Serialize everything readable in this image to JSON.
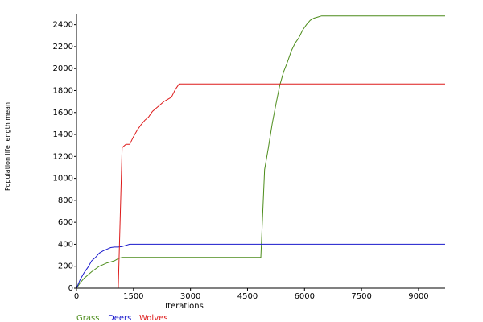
{
  "chart_data": {
    "type": "line",
    "xlabel": "Iterations",
    "ylabel": "Population life length mean",
    "xlim": [
      0,
      9700
    ],
    "ylim": [
      0,
      2500
    ],
    "xticks": [
      0,
      1500,
      3000,
      4500,
      6000,
      7500,
      9000
    ],
    "yticks": [
      0,
      200,
      400,
      600,
      800,
      1000,
      1200,
      1400,
      1600,
      1800,
      2000,
      2200,
      2400
    ],
    "grid": false,
    "legend": "bottom-left",
    "series": [
      {
        "name": "Grass",
        "color": "#4c8c1a",
        "x": [
          0,
          100,
          200,
          300,
          400,
          500,
          600,
          700,
          800,
          900,
          1000,
          1100,
          1200,
          4800,
          4850,
          4950,
          5050,
          5150,
          5250,
          5350,
          5450,
          5550,
          5650,
          5750,
          5850,
          5950,
          6050,
          6150,
          6250,
          6350,
          6450,
          6600,
          7000,
          8000,
          9000,
          9700
        ],
        "y": [
          0,
          50,
          90,
          120,
          150,
          175,
          200,
          215,
          230,
          240,
          250,
          270,
          280,
          280,
          280,
          1080,
          1280,
          1500,
          1680,
          1850,
          1970,
          2060,
          2160,
          2230,
          2280,
          2350,
          2400,
          2440,
          2460,
          2470,
          2480,
          2480,
          2480,
          2480,
          2480,
          2480
        ]
      },
      {
        "name": "Deers",
        "color": "#1a1acc",
        "x": [
          0,
          100,
          200,
          300,
          400,
          500,
          600,
          700,
          800,
          900,
          1000,
          1100,
          1200,
          1300,
          1400,
          2000,
          4000,
          6000,
          8000,
          9700
        ],
        "y": [
          0,
          80,
          140,
          190,
          250,
          280,
          320,
          340,
          355,
          370,
          375,
          375,
          380,
          390,
          400,
          400,
          400,
          400,
          400,
          400
        ]
      },
      {
        "name": "Wolves",
        "color": "#dd1a1a",
        "x": [
          0,
          1100,
          1200,
          1300,
          1400,
          1500,
          1600,
          1700,
          1800,
          1900,
          2000,
          2100,
          2200,
          2300,
          2400,
          2500,
          2600,
          2700,
          3000,
          5000,
          7000,
          9700
        ],
        "y": [
          0,
          0,
          1280,
          1310,
          1310,
          1380,
          1440,
          1490,
          1530,
          1560,
          1610,
          1640,
          1670,
          1700,
          1720,
          1740,
          1810,
          1860,
          1860,
          1860,
          1860,
          1860
        ]
      }
    ]
  }
}
